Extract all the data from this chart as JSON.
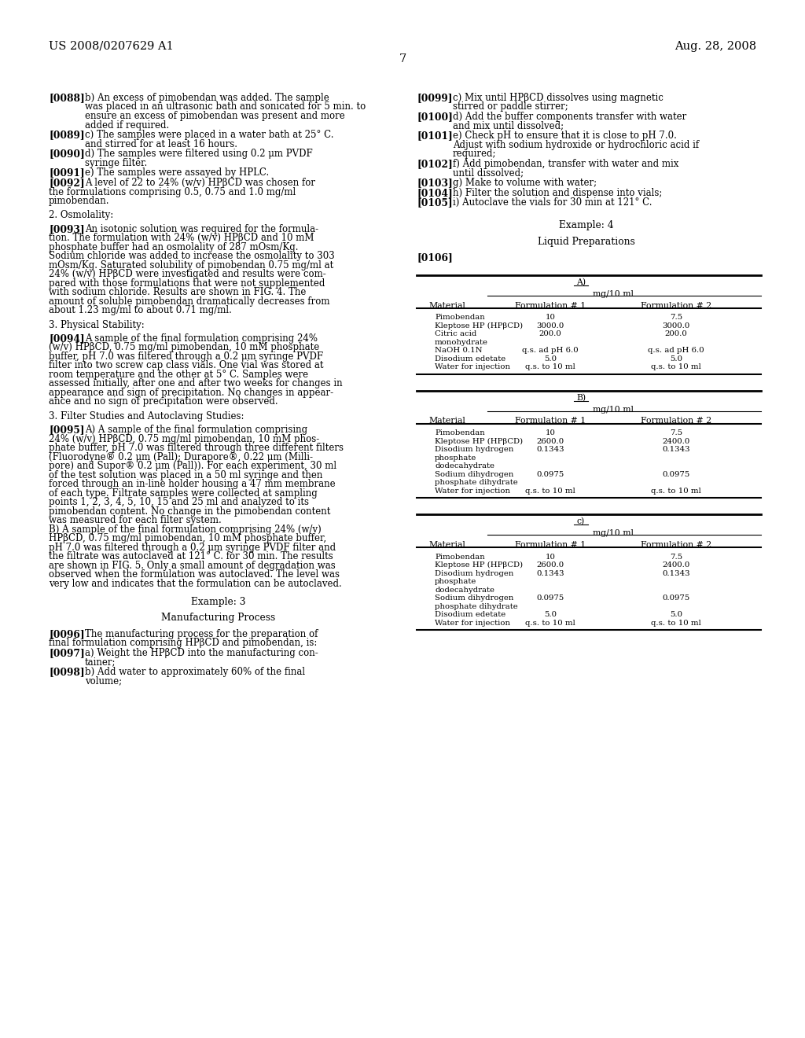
{
  "background_color": "#ffffff",
  "header_left": "US 2008/0207629 A1",
  "header_right": "Aug. 28, 2008",
  "page_number": "7",
  "table_A": {
    "label": "A)",
    "subheader": "mg/10 ml",
    "col1": "Material",
    "col2": "Formulation # 1",
    "col3": "Formulation # 2",
    "rows": [
      [
        "Pimobendan",
        "10",
        "7.5"
      ],
      [
        "Kleptose HP (HPβCD)",
        "3000.0",
        "3000.0"
      ],
      [
        "Citric acid\nmonohydrate",
        "200.0",
        "200.0"
      ],
      [
        "NaOH 0.1N",
        "q.s. ad pH 6.0",
        "q.s. ad pH 6.0"
      ],
      [
        "Disodium edetate",
        "5.0",
        "5.0"
      ],
      [
        "Water for injection",
        "q.s. to 10 ml",
        "q.s. to 10 ml"
      ]
    ]
  },
  "table_B": {
    "label": "B)",
    "subheader": "mg/10 ml",
    "col1": "Material",
    "col2": "Formulation # 1",
    "col3": "Formulation # 2",
    "rows": [
      [
        "Pimobendan",
        "10",
        "7.5"
      ],
      [
        "Kleptose HP (HPβCD)",
        "2600.0",
        "2400.0"
      ],
      [
        "Disodium hydrogen\nphosphate\ndodecahydrate",
        "0.1343",
        "0.1343"
      ],
      [
        "Sodium dihydrogen\nphosphate dihydrate",
        "0.0975",
        "0.0975"
      ],
      [
        "Water for injection",
        "q.s. to 10 ml",
        "q.s. to 10 ml"
      ]
    ]
  },
  "table_C": {
    "label": "c)",
    "subheader": "mg/10 ml",
    "col1": "Material",
    "col2": "Formulation # 1",
    "col3": "Formulation # 2",
    "rows": [
      [
        "Pimobendan",
        "10",
        "7.5"
      ],
      [
        "Kleptose HP (HPβCD)",
        "2600.0",
        "2400.0"
      ],
      [
        "Disodium hydrogen\nphosphate\ndodecahydrate",
        "0.1343",
        "0.1343"
      ],
      [
        "Sodium dihydrogen\nphosphate dihydrate",
        "0.0975",
        "0.0975"
      ],
      [
        "Disodium edetate",
        "5.0",
        "5.0"
      ],
      [
        "Water for injection",
        "q.s. to 10 ml",
        "q.s. to 10 ml"
      ]
    ]
  }
}
